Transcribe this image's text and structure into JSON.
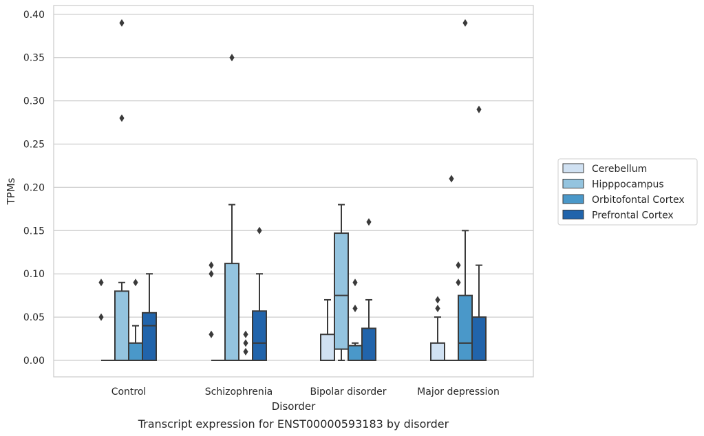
{
  "chart_data": {
    "type": "box",
    "caption": "Transcript expression for ENST00000593183 by disorder",
    "xlabel": "Disorder",
    "ylabel": "TPMs",
    "ylim": [
      -0.018,
      0.41
    ],
    "yticks": [
      0.0,
      0.05,
      0.1,
      0.15,
      0.2,
      0.25,
      0.3,
      0.35,
      0.4
    ],
    "ytick_labels": [
      "0.00",
      "0.05",
      "0.10",
      "0.15",
      "0.20",
      "0.25",
      "0.30",
      "0.35",
      "0.40"
    ],
    "grid": true,
    "legend_position": "right",
    "categories": [
      "Control",
      "Schizophrenia",
      "Bipolar disorder",
      "Major depression"
    ],
    "series": [
      {
        "name": "Cerebellum",
        "color": "#d0e1f2",
        "boxes": [
          {
            "q1": 0.0,
            "median": 0.0,
            "q3": 0.0,
            "whislo": 0.0,
            "whishi": 0.0,
            "fliers": []
          },
          {
            "q1": 0.0,
            "median": 0.0,
            "q3": 0.0,
            "whislo": 0.0,
            "whishi": 0.0,
            "fliers": []
          },
          {
            "q1": 0.0,
            "median": 0.0,
            "q3": 0.03,
            "whislo": 0.0,
            "whishi": 0.07,
            "fliers": []
          },
          {
            "q1": 0.0,
            "median": 0.0,
            "q3": 0.02,
            "whislo": 0.0,
            "whishi": 0.05,
            "fliers": [
              0.06,
              0.07
            ]
          }
        ]
      },
      {
        "name": "Hipppocampus",
        "color": "#94c4df",
        "boxes": [
          {
            "q1": 0.0,
            "median": 0.0,
            "q3": 0.08,
            "whislo": 0.0,
            "whishi": 0.09,
            "fliers": [
              0.28,
              0.39
            ]
          },
          {
            "q1": 0.0,
            "median": 0.0,
            "q3": 0.112,
            "whislo": 0.0,
            "whishi": 0.18,
            "fliers": [
              0.35
            ]
          },
          {
            "q1": 0.013,
            "median": 0.075,
            "q3": 0.147,
            "whislo": 0.0,
            "whishi": 0.18,
            "fliers": []
          },
          {
            "q1": 0.0,
            "median": 0.0,
            "q3": 0.0,
            "whislo": 0.0,
            "whishi": 0.0,
            "fliers": [
              0.21
            ]
          }
        ]
      },
      {
        "name": "Orbitofontal Cortex",
        "color": "#4a98c9",
        "boxes": [
          {
            "q1": 0.0,
            "median": 0.0,
            "q3": 0.02,
            "whislo": 0.0,
            "whishi": 0.04,
            "fliers": [
              0.09
            ]
          },
          {
            "q1": 0.0,
            "median": 0.0,
            "q3": 0.0,
            "whislo": 0.0,
            "whishi": 0.0,
            "fliers": [
              0.01,
              0.02,
              0.03
            ]
          },
          {
            "q1": 0.0,
            "median": 0.0,
            "q3": 0.017,
            "whislo": 0.0,
            "whishi": 0.02,
            "fliers": [
              0.06,
              0.09
            ]
          },
          {
            "q1": 0.0,
            "median": 0.02,
            "q3": 0.075,
            "whislo": 0.0,
            "whishi": 0.15,
            "fliers": [
              0.39
            ]
          }
        ]
      },
      {
        "name": "Prefrontal Cortex",
        "color": "#2164ab",
        "boxes": [
          {
            "q1": 0.0,
            "median": 0.04,
            "q3": 0.055,
            "whislo": 0.0,
            "whishi": 0.1,
            "fliers": []
          },
          {
            "q1": 0.0,
            "median": 0.02,
            "q3": 0.057,
            "whislo": 0.0,
            "whishi": 0.1,
            "fliers": [
              0.15
            ]
          },
          {
            "q1": 0.0,
            "median": 0.0,
            "q3": 0.037,
            "whislo": 0.0,
            "whishi": 0.07,
            "fliers": [
              0.16
            ]
          },
          {
            "q1": 0.0,
            "median": 0.0,
            "q3": 0.05,
            "whislo": 0.0,
            "whishi": 0.11,
            "fliers": [
              0.29
            ]
          }
        ]
      }
    ],
    "extra_fliers": [
      {
        "category": 0,
        "offset_series": -0.5,
        "values": [
          0.05,
          0.09
        ]
      },
      {
        "category": 1,
        "offset_series": -0.5,
        "values": [
          0.03,
          0.1,
          0.11
        ]
      },
      {
        "category": 3,
        "offset_series": 1.5,
        "values": [
          0.09,
          0.11
        ]
      }
    ]
  }
}
